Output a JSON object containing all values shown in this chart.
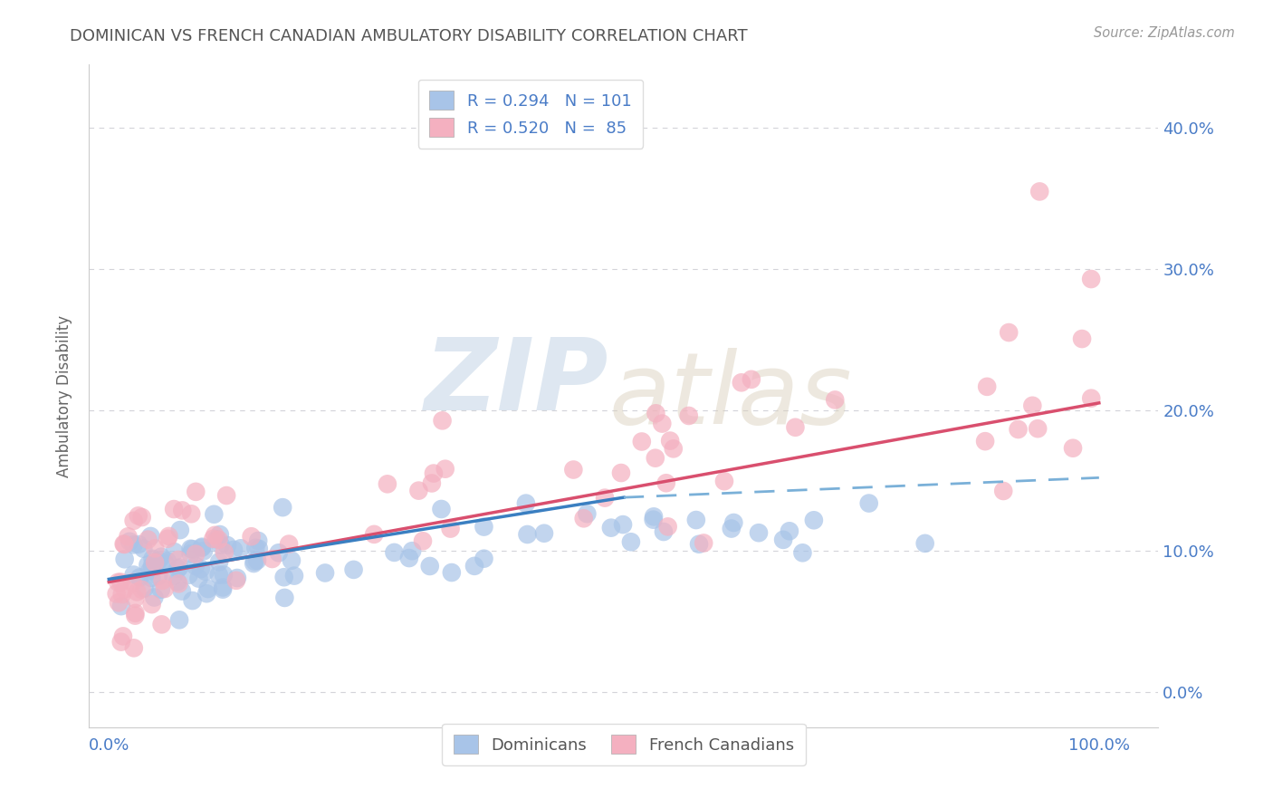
{
  "title": "DOMINICAN VS FRENCH CANADIAN AMBULATORY DISABILITY CORRELATION CHART",
  "source": "Source: ZipAtlas.com",
  "ylabel": "Ambulatory Disability",
  "legend_r1": "R = 0.294",
  "legend_n1": "N = 101",
  "legend_r2": "R = 0.520",
  "legend_n2": "N =  85",
  "group1_color": "#a8c4e8",
  "group2_color": "#f4b0c0",
  "line1_solid_color": "#3a7fc1",
  "line1_dash_color": "#7ab0d8",
  "line2_color": "#d94f6e",
  "label_color": "#4a7cc7",
  "title_color": "#555555",
  "background_color": "#ffffff",
  "grid_color": "#c8c8d0",
  "source_color": "#999999",
  "ytick_vals": [
    0.0,
    0.1,
    0.2,
    0.3,
    0.4
  ],
  "ytick_labels": [
    "0.0%",
    "10.0%",
    "20.0%",
    "30.0%",
    "40.0%"
  ],
  "xtick_vals": [
    0.0,
    1.0
  ],
  "xtick_labels": [
    "0.0%",
    "100.0%"
  ],
  "xlim": [
    -0.02,
    1.06
  ],
  "ylim": [
    -0.025,
    0.445
  ],
  "line1_solid_end_x": 0.52,
  "line1_start_y": 0.08,
  "line1_end_y": 0.138,
  "line1_dash_end_y": 0.152,
  "line2_start_y": 0.078,
  "line2_end_y": 0.205,
  "scatter_seed1": 42,
  "scatter_seed2": 99,
  "n1": 101,
  "n2": 85
}
